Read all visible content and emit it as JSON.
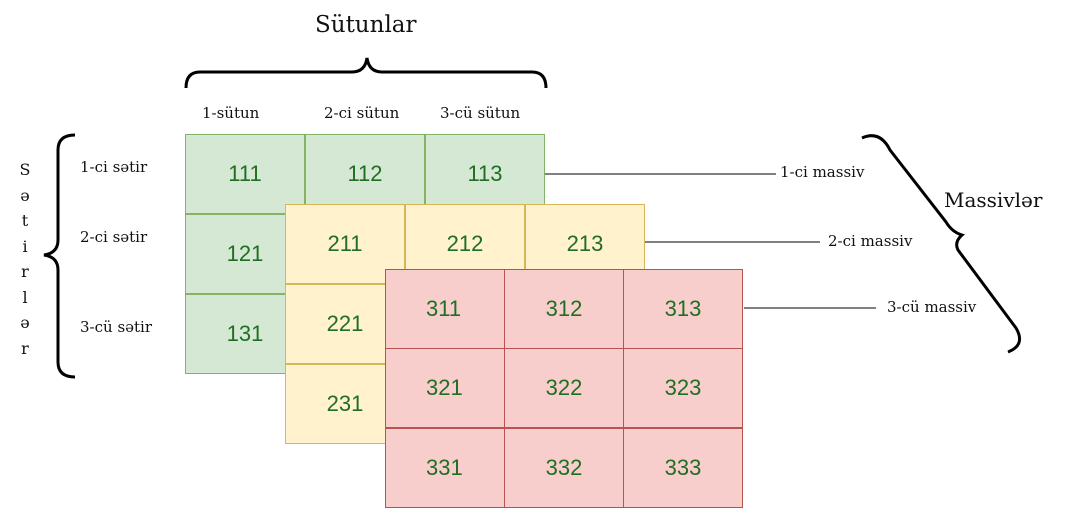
{
  "title_columns": "Sütunlar",
  "title_rows_letters": [
    "S",
    "ə",
    "t",
    "i",
    "r",
    "l",
    "ə",
    "r"
  ],
  "title_arrays": "Massivlər",
  "column_labels": [
    "1-sütun",
    "2-ci sütun",
    "3-cü sütun"
  ],
  "row_labels": [
    "1-ci sətir",
    "2-ci sətir",
    "3-cü sətir"
  ],
  "array_labels": [
    "1-ci massiv",
    "2-ci massiv",
    "3-cü massiv"
  ],
  "arrays": [
    {
      "name": "1-ci massiv",
      "color": "#d5e8d4",
      "rows": [
        [
          "111",
          "112",
          "113"
        ],
        [
          "121",
          "",
          ""
        ],
        [
          "131",
          "",
          ""
        ]
      ]
    },
    {
      "name": "2-ci massiv",
      "color": "#fff2cc",
      "rows": [
        [
          "211",
          "212",
          "213"
        ],
        [
          "221",
          "",
          ""
        ],
        [
          "231",
          "",
          ""
        ]
      ]
    },
    {
      "name": "3-cü massiv",
      "color": "#f8cecc",
      "rows": [
        [
          "311",
          "312",
          "313"
        ],
        [
          "321",
          "322",
          "323"
        ],
        [
          "331",
          "332",
          "333"
        ]
      ]
    }
  ],
  "number_color": "#1f6e23"
}
